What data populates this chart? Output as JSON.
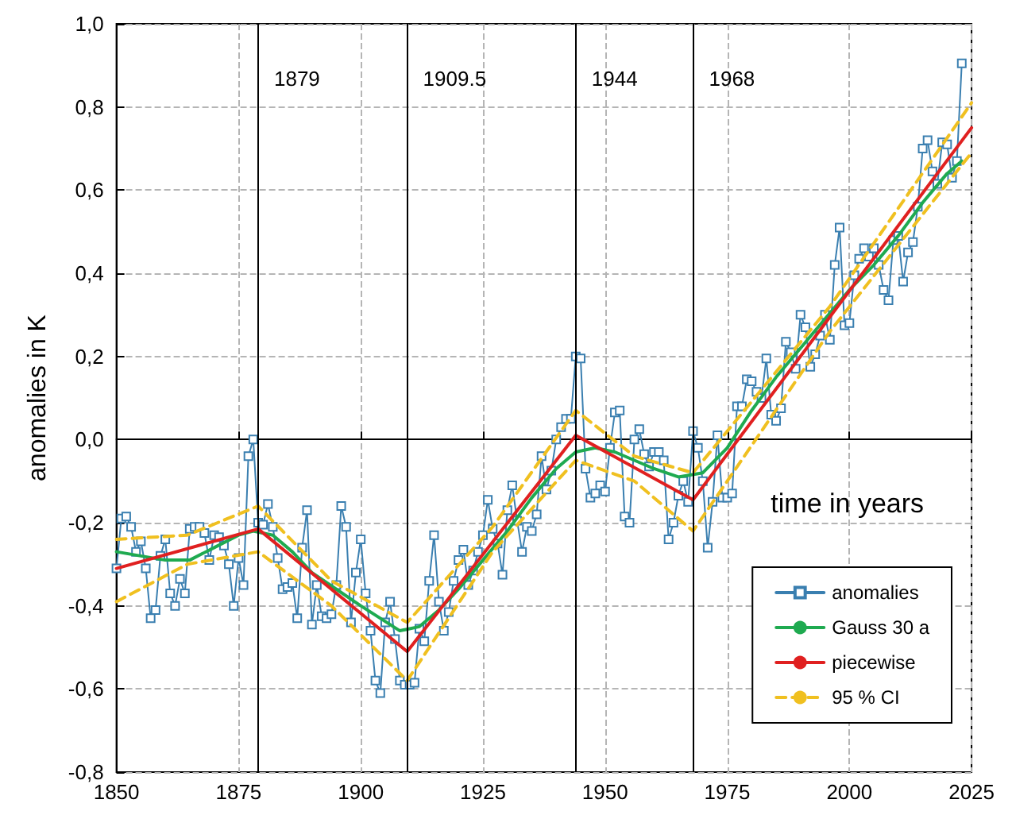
{
  "chart_data": {
    "type": "line",
    "xlabel": "time in years",
    "ylabel": "anomalies in K",
    "x": [
      1850,
      1851,
      1852,
      1853,
      1854,
      1855,
      1856,
      1857,
      1858,
      1859,
      1860,
      1861,
      1862,
      1863,
      1864,
      1865,
      1866,
      1867,
      1868,
      1869,
      1870,
      1871,
      1872,
      1873,
      1874,
      1875,
      1876,
      1877,
      1878,
      1879,
      1880,
      1881,
      1882,
      1883,
      1884,
      1885,
      1886,
      1887,
      1888,
      1889,
      1890,
      1891,
      1892,
      1893,
      1894,
      1895,
      1896,
      1897,
      1898,
      1899,
      1900,
      1901,
      1902,
      1903,
      1904,
      1905,
      1906,
      1907,
      1908,
      1909,
      1910,
      1911,
      1912,
      1913,
      1914,
      1915,
      1916,
      1917,
      1918,
      1919,
      1920,
      1921,
      1922,
      1923,
      1924,
      1925,
      1926,
      1927,
      1928,
      1929,
      1930,
      1931,
      1932,
      1933,
      1934,
      1935,
      1936,
      1937,
      1938,
      1939,
      1940,
      1941,
      1942,
      1943,
      1944,
      1945,
      1946,
      1947,
      1948,
      1949,
      1950,
      1951,
      1952,
      1953,
      1954,
      1955,
      1956,
      1957,
      1958,
      1959,
      1960,
      1961,
      1962,
      1963,
      1964,
      1965,
      1966,
      1967,
      1968,
      1969,
      1970,
      1971,
      1972,
      1973,
      1974,
      1975,
      1976,
      1977,
      1978,
      1979,
      1980,
      1981,
      1982,
      1983,
      1984,
      1985,
      1986,
      1987,
      1988,
      1989,
      1990,
      1991,
      1992,
      1993,
      1994,
      1995,
      1996,
      1997,
      1998,
      1999,
      2000,
      2001,
      2002,
      2003,
      2004,
      2005,
      2006,
      2007,
      2008,
      2009,
      2010,
      2011,
      2012,
      2013,
      2014,
      2015,
      2016,
      2017,
      2018,
      2019,
      2020,
      2021,
      2022,
      2023
    ],
    "series": [
      {
        "name": "anomalies",
        "color": "#3a7fb0",
        "marker": "square",
        "line_style": "solid",
        "values": [
          -0.31,
          -0.19,
          -0.185,
          -0.21,
          -0.27,
          -0.245,
          -0.31,
          -0.43,
          -0.41,
          -0.28,
          -0.24,
          -0.37,
          -0.4,
          -0.335,
          -0.37,
          -0.215,
          -0.21,
          -0.21,
          -0.225,
          -0.29,
          -0.23,
          -0.235,
          -0.255,
          -0.3,
          -0.4,
          -0.285,
          -0.35,
          -0.04,
          0.0,
          -0.2,
          -0.205,
          -0.155,
          -0.21,
          -0.285,
          -0.36,
          -0.355,
          -0.345,
          -0.43,
          -0.26,
          -0.17,
          -0.445,
          -0.35,
          -0.425,
          -0.43,
          -0.42,
          -0.35,
          -0.16,
          -0.21,
          -0.44,
          -0.32,
          -0.24,
          -0.37,
          -0.46,
          -0.58,
          -0.61,
          -0.44,
          -0.39,
          -0.48,
          -0.58,
          -0.59,
          -0.59,
          -0.585,
          -0.455,
          -0.485,
          -0.34,
          -0.23,
          -0.39,
          -0.46,
          -0.415,
          -0.34,
          -0.29,
          -0.265,
          -0.35,
          -0.315,
          -0.27,
          -0.23,
          -0.145,
          -0.215,
          -0.25,
          -0.325,
          -0.17,
          -0.11,
          -0.195,
          -0.27,
          -0.21,
          -0.22,
          -0.18,
          -0.04,
          -0.12,
          -0.075,
          0.0,
          0.03,
          0.05,
          0.05,
          0.2,
          0.195,
          -0.07,
          -0.14,
          -0.13,
          -0.11,
          -0.125,
          -0.02,
          0.065,
          0.07,
          -0.185,
          -0.2,
          0.0,
          0.025,
          -0.035,
          -0.065,
          -0.03,
          -0.03,
          -0.05,
          -0.24,
          -0.2,
          -0.135,
          -0.1,
          -0.15,
          0.02,
          -0.02,
          -0.1,
          -0.26,
          -0.15,
          0.01,
          -0.14,
          -0.14,
          -0.13,
          0.08,
          0.08,
          0.145,
          0.14,
          0.115,
          0.1,
          0.195,
          0.06,
          0.045,
          0.075,
          0.235,
          0.21,
          0.17,
          0.3,
          0.27,
          0.175,
          0.205,
          0.25,
          0.3,
          0.24,
          0.42,
          0.51,
          0.275,
          0.28,
          0.395,
          0.435,
          0.46,
          0.44,
          0.46,
          0.42,
          0.36,
          0.335,
          0.48,
          0.49,
          0.38,
          0.45,
          0.475,
          0.56,
          0.7,
          0.72,
          0.645,
          0.615,
          0.715,
          0.71,
          0.63,
          0.67,
          0.905
        ]
      },
      {
        "name": "Gauss 30 a",
        "color": "#1faa50",
        "marker": "none",
        "line_style": "solid",
        "x": [
          1850,
          1855,
          1860,
          1865,
          1870,
          1875,
          1878,
          1882,
          1886,
          1890,
          1895,
          1900,
          1904,
          1908,
          1912,
          1916,
          1920,
          1925,
          1930,
          1935,
          1940,
          1944,
          1948,
          1952,
          1956,
          1960,
          1965,
          1970,
          1975,
          1980,
          1985,
          1990,
          1995,
          2000,
          2005,
          2010,
          2015,
          2020,
          2023
        ],
        "values": [
          -0.27,
          -0.28,
          -0.29,
          -0.29,
          -0.26,
          -0.23,
          -0.22,
          -0.23,
          -0.27,
          -0.32,
          -0.36,
          -0.4,
          -0.43,
          -0.46,
          -0.45,
          -0.41,
          -0.36,
          -0.29,
          -0.22,
          -0.14,
          -0.07,
          -0.03,
          -0.02,
          -0.03,
          -0.05,
          -0.07,
          -0.09,
          -0.08,
          -0.02,
          0.07,
          0.15,
          0.22,
          0.29,
          0.36,
          0.42,
          0.49,
          0.57,
          0.64,
          0.67
        ]
      },
      {
        "name": "piecewise",
        "color": "#e02020",
        "marker": "none",
        "line_style": "solid",
        "x": [
          1850,
          1879,
          1909.5,
          1944,
          1968,
          2025
        ],
        "values": [
          -0.31,
          -0.215,
          -0.51,
          0.01,
          -0.145,
          0.75
        ]
      },
      {
        "name": "95 % CI",
        "color": "#f0c020",
        "marker": "none",
        "line_style": "dashed",
        "x": [
          1850,
          1864.5,
          1879,
          1894,
          1909.5,
          1927,
          1944,
          1956,
          1968,
          1996,
          2025
        ],
        "values": [
          -0.24,
          -0.23,
          -0.16,
          -0.34,
          -0.44,
          -0.21,
          0.07,
          -0.04,
          -0.08,
          0.32,
          0.81
        ]
      },
      {
        "color": "#f0c020",
        "marker": "none",
        "line_style": "dashed",
        "x": [
          1850,
          1864.5,
          1879,
          1894,
          1909.5,
          1927,
          1944,
          1956,
          1968,
          1996,
          2025
        ],
        "values": [
          -0.39,
          -0.3,
          -0.27,
          -0.4,
          -0.58,
          -0.27,
          -0.05,
          -0.1,
          -0.22,
          0.26,
          0.69
        ]
      }
    ],
    "xlim": [
      1850,
      2025
    ],
    "xticks": [
      1850,
      1875,
      1900,
      1925,
      1950,
      1975,
      2000,
      2025
    ],
    "ylim": [
      -0.8,
      1.0
    ],
    "yticks": [
      {
        "value": -0.8,
        "label": "-0,8"
      },
      {
        "value": -0.6,
        "label": "-0,6"
      },
      {
        "value": -0.4,
        "label": "-0,4"
      },
      {
        "value": -0.2,
        "label": "-0,2"
      },
      {
        "value": 0,
        "label": "0,0"
      },
      {
        "value": 0.2,
        "label": "0,2"
      },
      {
        "value": 0.4,
        "label": "0,4"
      },
      {
        "value": 0.6,
        "label": "0,6"
      },
      {
        "value": 0.8,
        "label": "0,8"
      },
      {
        "value": 1.0,
        "label": "1,0"
      }
    ],
    "grid": true,
    "legend": "bottom right",
    "ref_lines": [
      {
        "axis": "x",
        "value": 1879,
        "label": "1879"
      },
      {
        "axis": "x",
        "value": 1909.5,
        "label": "1909.5"
      },
      {
        "axis": "x",
        "value": 1944,
        "label": "1944"
      },
      {
        "axis": "x",
        "value": 1968,
        "label": "1968"
      }
    ]
  }
}
